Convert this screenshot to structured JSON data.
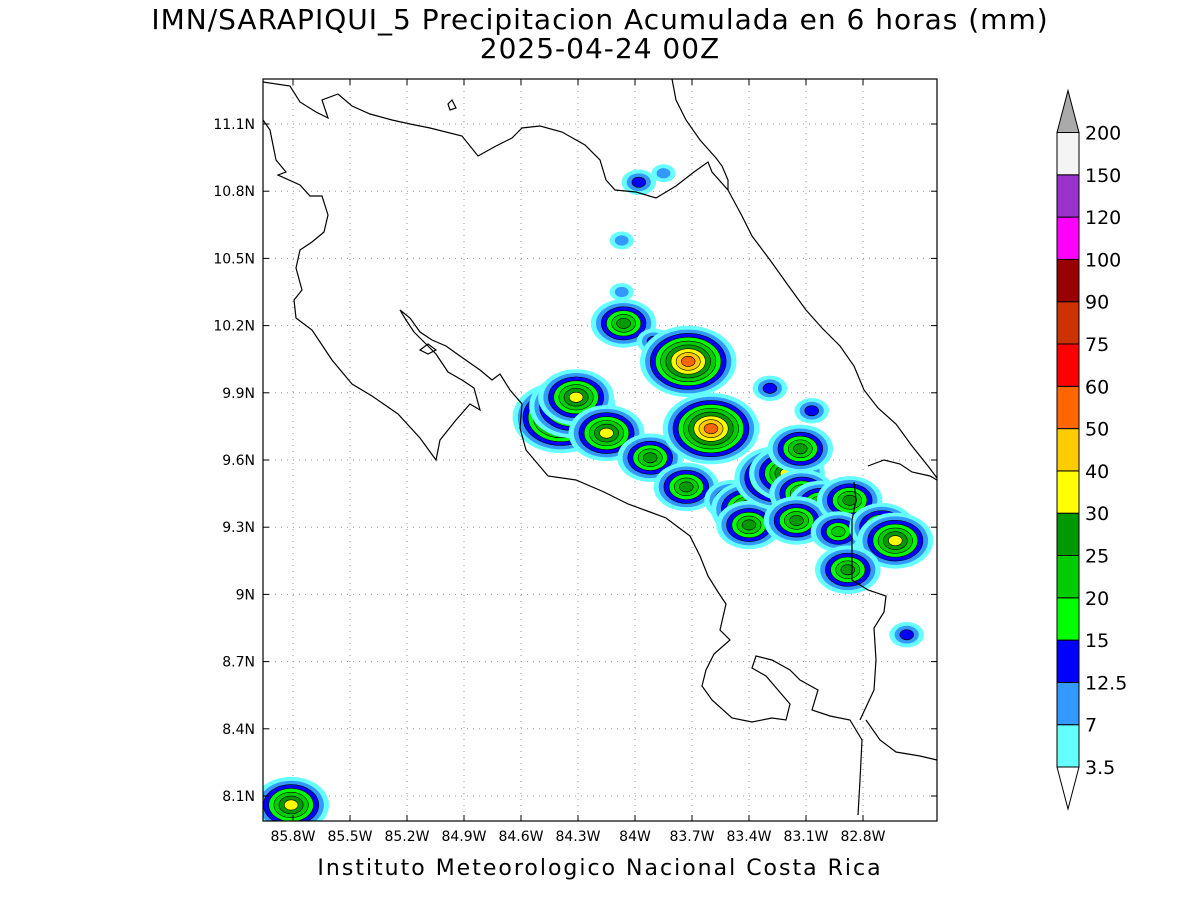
{
  "title": {
    "line1": "IMN/SARAPIQUI_5 Precipitacion Acumulada en 6 horas (mm)",
    "line2": "2025-04-24 00Z"
  },
  "footer": "Instituto Meteorologico Nacional Costa Rica",
  "map": {
    "lat_labels": [
      "11.1N",
      "10.8N",
      "10.5N",
      "10.2N",
      "9.9N",
      "9.6N",
      "9.3N",
      "9N",
      "8.7N",
      "8.4N",
      "8.1N"
    ],
    "lon_labels": [
      "85.8W",
      "85.5W",
      "85.2W",
      "84.9W",
      "84.6W",
      "84.3W",
      "84W",
      "83.7W",
      "83.4W",
      "83.1W",
      "82.8W"
    ]
  },
  "legend": {
    "levels": [
      "3.5",
      "7",
      "12.5",
      "15",
      "20",
      "25",
      "30",
      "40",
      "50",
      "60",
      "75",
      "90",
      "100",
      "120",
      "150",
      "200"
    ],
    "colors": [
      "#66ffff",
      "#3399ff",
      "#0000ff",
      "#00ff00",
      "#00cc00",
      "#009900",
      "#ffff00",
      "#ffcc00",
      "#ff6600",
      "#ff0000",
      "#cc3300",
      "#990000",
      "#ff00ff",
      "#9933cc",
      "#f4f4f4",
      "#aaaaaa"
    ]
  },
  "precip_cells": [
    {
      "lat": 9.79,
      "lon": -84.39,
      "mm": 50
    },
    {
      "lat": 9.84,
      "lon": -84.33,
      "mm": 40
    },
    {
      "lat": 9.88,
      "lon": -84.31,
      "mm": 30
    },
    {
      "lat": 9.72,
      "lon": -84.15,
      "mm": 30
    },
    {
      "lat": 10.21,
      "lon": -84.06,
      "mm": 25
    },
    {
      "lat": 10.35,
      "lon": -84.07,
      "mm": 7
    },
    {
      "lat": 10.58,
      "lon": -84.07,
      "mm": 7
    },
    {
      "lat": 10.13,
      "lon": -83.9,
      "mm": 12.5
    },
    {
      "lat": 10.04,
      "lon": -83.72,
      "mm": 50
    },
    {
      "lat": 9.61,
      "lon": -83.92,
      "mm": 25
    },
    {
      "lat": 9.74,
      "lon": -83.6,
      "mm": 50
    },
    {
      "lat": 9.48,
      "lon": -83.73,
      "mm": 25
    },
    {
      "lat": 9.42,
      "lon": -83.49,
      "mm": 20
    },
    {
      "lat": 9.38,
      "lon": -83.4,
      "mm": 30
    },
    {
      "lat": 9.31,
      "lon": -83.4,
      "mm": 25
    },
    {
      "lat": 9.52,
      "lon": -83.25,
      "mm": 40
    },
    {
      "lat": 9.54,
      "lon": -83.2,
      "mm": 30
    },
    {
      "lat": 9.45,
      "lon": -83.12,
      "mm": 25
    },
    {
      "lat": 9.4,
      "lon": -83.02,
      "mm": 25
    },
    {
      "lat": 9.33,
      "lon": -83.15,
      "mm": 25
    },
    {
      "lat": 9.65,
      "lon": -83.13,
      "mm": 25
    },
    {
      "lat": 9.82,
      "lon": -83.07,
      "mm": 12.5
    },
    {
      "lat": 9.92,
      "lon": -83.29,
      "mm": 12.5
    },
    {
      "lat": 9.42,
      "lon": -82.87,
      "mm": 25
    },
    {
      "lat": 9.28,
      "lon": -82.93,
      "mm": 20
    },
    {
      "lat": 9.3,
      "lon": -82.7,
      "mm": 25
    },
    {
      "lat": 9.24,
      "lon": -82.63,
      "mm": 30
    },
    {
      "lat": 9.11,
      "lon": -82.88,
      "mm": 25
    },
    {
      "lat": 8.82,
      "lon": -82.57,
      "mm": 12.5
    },
    {
      "lat": 10.84,
      "lon": -83.98,
      "mm": 12.5
    },
    {
      "lat": 10.88,
      "lon": -83.85,
      "mm": 7
    },
    {
      "lat": 8.06,
      "lon": -85.81,
      "mm": 30
    }
  ]
}
